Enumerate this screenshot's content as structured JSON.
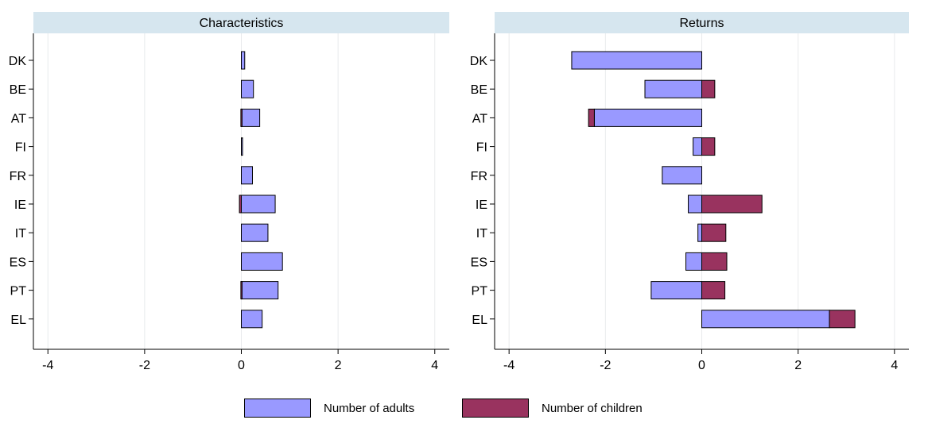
{
  "colors": {
    "adults": "#9999ff",
    "children": "#99335f",
    "header_bg": "#d6e6ef",
    "grid": "#e8eaec"
  },
  "legend": {
    "adults": "Number of adults",
    "children": "Number of children"
  },
  "chart_data": [
    {
      "type": "bar",
      "orientation": "horizontal",
      "stacked": true,
      "title": "Characteristics",
      "categories": [
        "DK",
        "BE",
        "AT",
        "FI",
        "FR",
        "IE",
        "IT",
        "ES",
        "PT",
        "EL"
      ],
      "series": [
        {
          "name": "Number of adults",
          "values": [
            0.07,
            0.25,
            0.38,
            0.02,
            0.23,
            0.7,
            0.55,
            0.85,
            0.76,
            0.43
          ]
        },
        {
          "name": "Number of children",
          "values": [
            0,
            0,
            -0.01,
            0,
            0,
            -0.04,
            0,
            0,
            -0.01,
            0
          ]
        }
      ],
      "xlim": [
        -4.3,
        4.3
      ],
      "xticks": [
        -4,
        -2,
        0,
        2,
        4
      ],
      "grid": true
    },
    {
      "type": "bar",
      "orientation": "horizontal",
      "stacked": true,
      "title": "Returns",
      "categories": [
        "DK",
        "BE",
        "AT",
        "FI",
        "FR",
        "IE",
        "IT",
        "ES",
        "PT",
        "EL"
      ],
      "series": [
        {
          "name": "Number of adults",
          "values": [
            -2.7,
            -1.18,
            -2.23,
            -0.18,
            -0.82,
            -0.28,
            -0.08,
            -0.33,
            -1.05,
            2.65
          ]
        },
        {
          "name": "Number of children",
          "values": [
            0,
            0.27,
            -0.12,
            0.27,
            0,
            1.25,
            0.5,
            0.52,
            0.48,
            0.53
          ]
        }
      ],
      "xlim": [
        -4.3,
        4.3
      ],
      "xticks": [
        -4,
        -2,
        0,
        2,
        4
      ],
      "grid": true
    }
  ]
}
